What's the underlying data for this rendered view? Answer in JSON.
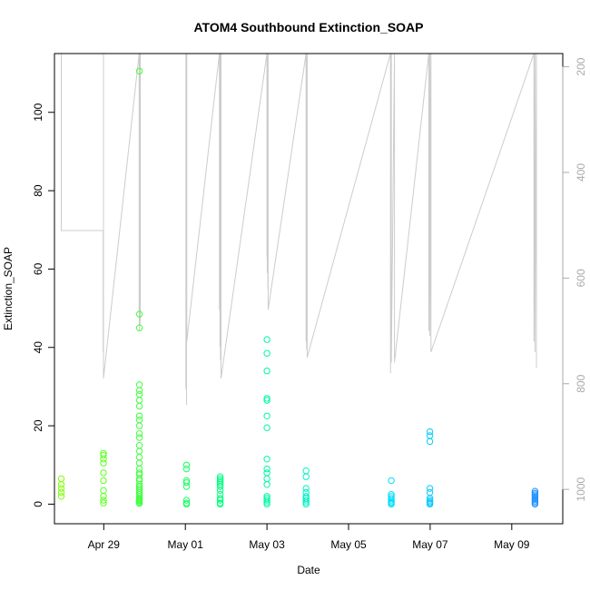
{
  "chart_data": {
    "type": "scatter",
    "title": "ATOM4 Southbound Extinction_SOAP",
    "xlabel": "Date",
    "ylabel": "Extinction_SOAP",
    "xlim": [
      "2016-04-27T19:00",
      "2016-05-10T06:00"
    ],
    "ylim": [
      -5,
      115
    ],
    "y2lim": [
      1065,
      175
    ],
    "x_ticks": [
      {
        "t": "2016-04-29",
        "label": "Apr 29"
      },
      {
        "t": "2016-05-01",
        "label": "May 01"
      },
      {
        "t": "2016-05-03",
        "label": "May 03"
      },
      {
        "t": "2016-05-05",
        "label": "May 05"
      },
      {
        "t": "2016-05-07",
        "label": "May 07"
      },
      {
        "t": "2016-05-09",
        "label": "May 09"
      }
    ],
    "y_ticks": [
      0,
      20,
      40,
      60,
      80,
      100
    ],
    "y2_ticks": [
      200,
      400,
      600,
      800,
      1000
    ],
    "grid": false,
    "point_colors_by_time": [
      "#7fff00",
      "#00ff7f",
      "#00e5ff",
      "#1e90ff"
    ],
    "secondary_line_color": "#cccccc",
    "series": [
      {
        "x": [
          "2016-04-27T23:00",
          "2016-04-27T23:00",
          "2016-04-27T23:00",
          "2016-04-27T23:00",
          "2016-04-27T23:00",
          "2016-04-28T23:50",
          "2016-04-28T23:50",
          "2016-04-28T23:50",
          "2016-04-28T23:50",
          "2016-04-28T23:50",
          "2016-04-28T23:50",
          "2016-04-28T23:50",
          "2016-04-28T23:50",
          "2016-04-28T23:50",
          "2016-04-28T23:50",
          "2016-04-29T20:50",
          "2016-04-29T20:50",
          "2016-04-29T21:00",
          "2016-04-29T21:00",
          "2016-04-29T21:00",
          "2016-04-29T21:00",
          "2016-04-29T21:00",
          "2016-04-29T21:00",
          "2016-04-29T21:00",
          "2016-04-29T21:00",
          "2016-04-29T21:00",
          "2016-04-29T21:00",
          "2016-04-29T21:00",
          "2016-04-29T21:00",
          "2016-04-29T21:00",
          "2016-04-29T21:00",
          "2016-04-29T21:00",
          "2016-04-29T21:00",
          "2016-04-29T21:00",
          "2016-04-29T21:00",
          "2016-04-29T21:00",
          "2016-04-29T21:00",
          "2016-04-29T21:00",
          "2016-04-29T21:00",
          "2016-04-29T21:00",
          "2016-04-29T21:00",
          "2016-04-29T21:00",
          "2016-04-29T21:00",
          "2016-04-29T21:00",
          "2016-04-29T21:00",
          "2016-04-29T21:00",
          "2016-04-29T21:00",
          "2016-04-29T21:00",
          "2016-04-29T21:00",
          "2016-04-29T21:00",
          "2016-05-01T00:40",
          "2016-05-01T00:40",
          "2016-05-01T00:40",
          "2016-05-01T00:40",
          "2016-05-01T00:40",
          "2016-05-01T00:40",
          "2016-05-01T00:40",
          "2016-05-01T00:40",
          "2016-05-01T20:30",
          "2016-05-01T20:30",
          "2016-05-01T20:30",
          "2016-05-01T20:30",
          "2016-05-01T20:30",
          "2016-05-01T20:30",
          "2016-05-01T20:30",
          "2016-05-01T20:30",
          "2016-05-01T20:30",
          "2016-05-01T20:30",
          "2016-05-01T20:30",
          "2016-05-01T20:30",
          "2016-05-03T00:00",
          "2016-05-03T00:00",
          "2016-05-03T00:00",
          "2016-05-03T00:00",
          "2016-05-03T00:00",
          "2016-05-03T00:00",
          "2016-05-03T00:00",
          "2016-05-03T00:00",
          "2016-05-03T00:00",
          "2016-05-03T00:00",
          "2016-05-03T00:00",
          "2016-05-03T00:00",
          "2016-05-03T00:00",
          "2016-05-03T00:00",
          "2016-05-03T00:00",
          "2016-05-03T00:00",
          "2016-05-03T00:00",
          "2016-05-03T23:00",
          "2016-05-03T23:00",
          "2016-05-03T23:00",
          "2016-05-03T23:00",
          "2016-05-03T23:00",
          "2016-05-03T23:00",
          "2016-05-03T23:00",
          "2016-05-03T23:00",
          "2016-05-03T23:00",
          "2016-05-06T01:10",
          "2016-05-06T01:10",
          "2016-05-06T01:10",
          "2016-05-06T01:10",
          "2016-05-06T01:10",
          "2016-05-06T01:10",
          "2016-05-06T01:10",
          "2016-05-06T01:10",
          "2016-05-06T23:50",
          "2016-05-06T23:50",
          "2016-05-06T23:50",
          "2016-05-06T23:50",
          "2016-05-06T23:50",
          "2016-05-06T23:50",
          "2016-05-06T23:50",
          "2016-05-06T23:50",
          "2016-05-06T23:50",
          "2016-05-06T23:50",
          "2016-05-09T13:40",
          "2016-05-09T13:40",
          "2016-05-09T13:40",
          "2016-05-09T13:40",
          "2016-05-09T13:40",
          "2016-05-09T13:40",
          "2016-05-09T13:40",
          "2016-05-09T13:40",
          "2016-05-09T13:40"
        ],
        "y": [
          2.0,
          3.0,
          4.0,
          5.0,
          6.5,
          0.3,
          1.0,
          2.0,
          3.5,
          6.0,
          8.0,
          10.5,
          11.5,
          12.5,
          13.0,
          0.5,
          1.0,
          1.5,
          2.5,
          3.5,
          4.5,
          6.0,
          7.5,
          9.0,
          10.5,
          12.0,
          13.5,
          15.0,
          17.0,
          18.0,
          20.0,
          21.5,
          22.5,
          25.0,
          26.5,
          28.0,
          29.0,
          30.5,
          45.0,
          48.5,
          110.5,
          0.2,
          0.8,
          1.2,
          2.0,
          3.0,
          4.0,
          5.0,
          6.5,
          8.0,
          0.0,
          0.3,
          1.0,
          4.5,
          5.5,
          6.0,
          9.0,
          10.0,
          0.0,
          0.3,
          1.0,
          1.5,
          2.5,
          3.5,
          4.5,
          5.0,
          5.5,
          6.0,
          6.5,
          7.0,
          0.0,
          0.5,
          1.0,
          1.5,
          2.0,
          5.0,
          6.5,
          8.0,
          9.0,
          11.5,
          19.5,
          22.5,
          26.5,
          27.0,
          34.0,
          38.5,
          42.0,
          0.0,
          0.5,
          1.0,
          1.5,
          2.0,
          3.0,
          4.0,
          7.0,
          8.5,
          0.0,
          0.3,
          0.6,
          1.0,
          1.5,
          2.0,
          2.5,
          6.0,
          0.0,
          0.3,
          0.6,
          1.0,
          1.5,
          3.0,
          4.0,
          16.0,
          17.5,
          18.5,
          0.0,
          0.4,
          0.8,
          1.2,
          1.6,
          2.0,
          2.4,
          2.8,
          3.3
        ]
      }
    ],
    "secondary_series": {
      "name": "",
      "axis": "right",
      "x": [
        "2016-04-27T23:00",
        "2016-04-27T23:00",
        "2016-04-28T23:40",
        "2016-04-28T23:40",
        "2016-04-28T23:50",
        "2016-04-28T23:50",
        "2016-04-28T23:50",
        "2016-04-29T20:50",
        "2016-04-29T20:50",
        "2016-04-29T20:55",
        "2016-04-29T21:00",
        "2016-04-29T21:00",
        "2016-04-29T21:10",
        "2016-04-29T21:20",
        "2016-04-29T21:20",
        "2016-04-29T21:30",
        "2016-04-29T21:30",
        "2016-05-01T00:20",
        "2016-05-01T00:20",
        "2016-05-01T00:40",
        "2016-05-01T00:40",
        "2016-05-01T00:50",
        "2016-05-01T00:50",
        "2016-05-01T20:00",
        "2016-05-01T20:00",
        "2016-05-01T20:20",
        "2016-05-01T20:20",
        "2016-05-01T20:40",
        "2016-05-01T20:40",
        "2016-05-01T21:00",
        "2016-05-01T21:00",
        "2016-05-03T00:00",
        "2016-05-03T00:00",
        "2016-05-03T00:10",
        "2016-05-03T00:10",
        "2016-05-03T00:30",
        "2016-05-03T00:30",
        "2016-05-03T00:40",
        "2016-05-03T00:40",
        "2016-05-03T23:00",
        "2016-05-03T23:00",
        "2016-05-03T23:20",
        "2016-05-03T23:20",
        "2016-05-03T23:40",
        "2016-05-03T23:40",
        "2016-05-06T00:40",
        "2016-05-06T00:40",
        "2016-05-06T01:10",
        "2016-05-06T01:10",
        "2016-05-06T03:00",
        "2016-05-06T03:00",
        "2016-05-06T23:10",
        "2016-05-06T23:10",
        "2016-05-06T23:50",
        "2016-05-06T23:50",
        "2016-05-07T00:30",
        "2016-05-07T00:30",
        "2016-05-09T13:00",
        "2016-05-09T13:00",
        "2016-05-09T13:40",
        "2016-05-09T13:40",
        "2016-05-09T14:30",
        "2016-05-09T14:30"
      ],
      "y": [
        175,
        510,
        510,
        740,
        740,
        175,
        790,
        175,
        660,
        690,
        175,
        700,
        175,
        690,
        175,
        680,
        175,
        175,
        810,
        175,
        840,
        175,
        720,
        175,
        660,
        175,
        730,
        175,
        755,
        175,
        790,
        175,
        560,
        175,
        590,
        175,
        620,
        175,
        660,
        175,
        720,
        175,
        735,
        175,
        750,
        175,
        780,
        175,
        760,
        175,
        760,
        175,
        700,
        175,
        710,
        175,
        740,
        175,
        720,
        175,
        740,
        175,
        770
      ]
    }
  }
}
